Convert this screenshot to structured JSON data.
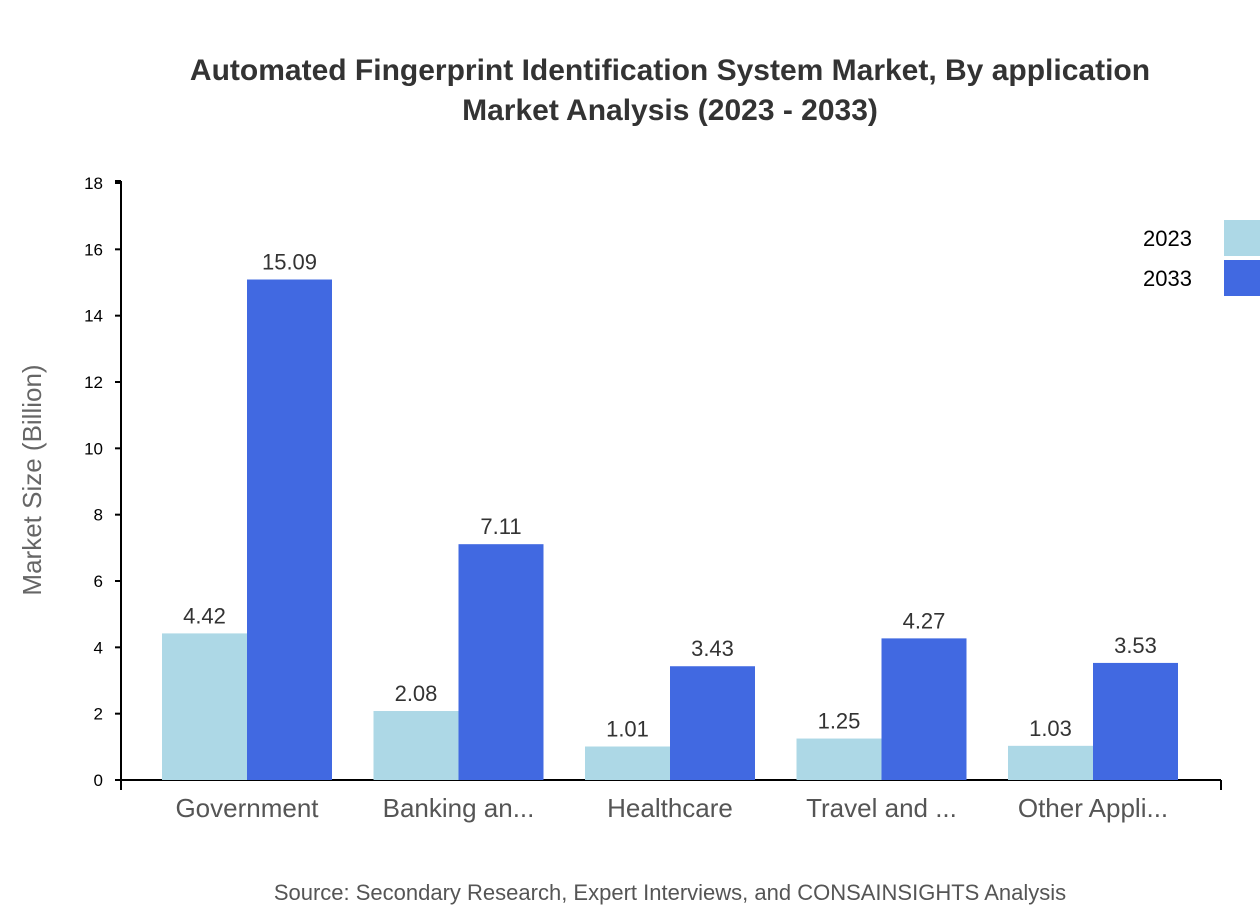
{
  "chart_data": {
    "type": "bar",
    "title_lines": [
      "Automated Fingerprint Identification System Market, By application",
      "Market Analysis (2023 - 2033)"
    ],
    "ylabel": "Market Size (Billion)",
    "xlabel": "",
    "ylim": [
      0,
      18
    ],
    "yticks": [
      0,
      2,
      4,
      6,
      8,
      10,
      12,
      14,
      16,
      18
    ],
    "categories": [
      "Government",
      "Banking an...",
      "Healthcare",
      "Travel and ...",
      "Other Appli..."
    ],
    "series": [
      {
        "name": "2023",
        "color": "#add8e6",
        "values": [
          4.42,
          2.08,
          1.01,
          1.25,
          1.03
        ]
      },
      {
        "name": "2033",
        "color": "#4169e1",
        "values": [
          15.09,
          7.11,
          3.43,
          4.27,
          3.53
        ]
      }
    ],
    "legend_position": "top-right",
    "grid": false,
    "source": "Source: Secondary Research, Expert Interviews, and CONSAINSIGHTS Analysis"
  }
}
